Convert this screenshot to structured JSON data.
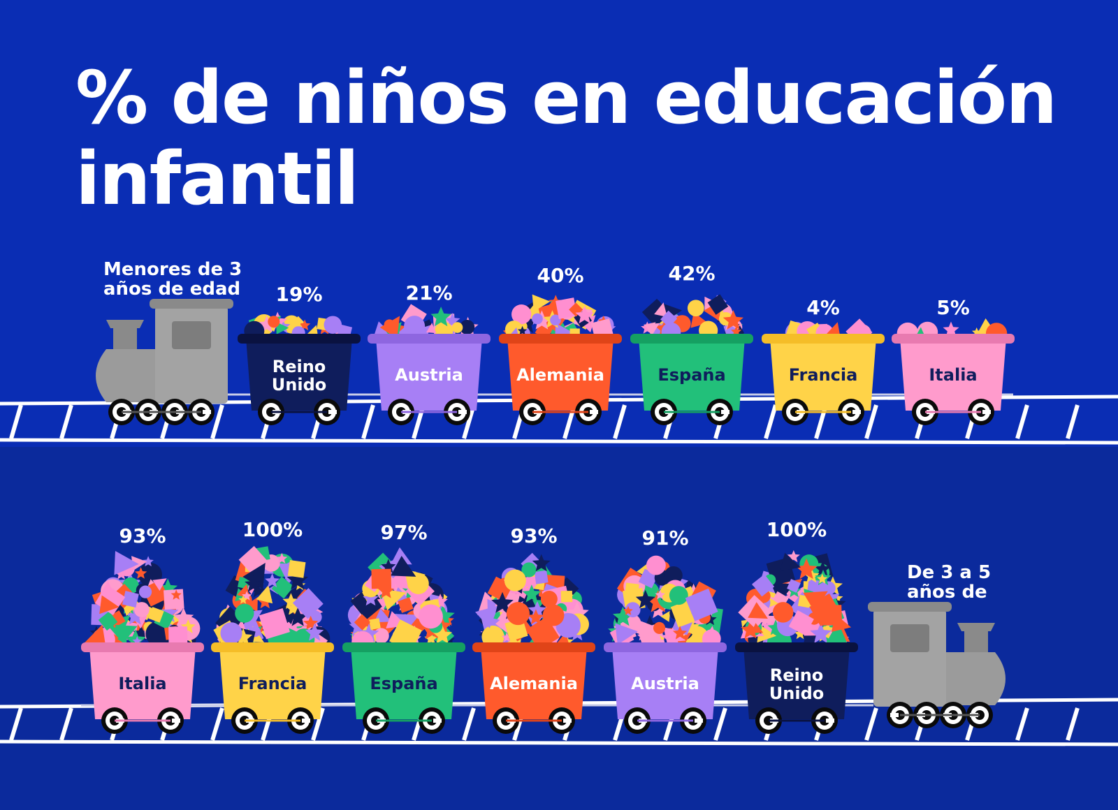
{
  "title": "% de niños en educación infantil",
  "chart_data": {
    "type": "bar",
    "title": "% de niños en educación infantil",
    "panels": [
      {
        "group_label": "Menores de 3 años de edad",
        "categories": [
          "Reino Unido",
          "Austria",
          "Alemania",
          "España",
          "Francia",
          "Italia"
        ],
        "values": [
          19,
          21,
          40,
          42,
          4,
          5
        ],
        "labels": [
          "19%",
          "21%",
          "40%",
          "42%",
          "4%",
          "5%"
        ]
      },
      {
        "group_label": "De 3 a 5 años de",
        "categories": [
          "Italia",
          "Francia",
          "España",
          "Alemania",
          "Austria",
          "Reino Unido"
        ],
        "values": [
          93,
          100,
          97,
          93,
          91,
          100
        ],
        "labels": [
          "93%",
          "100%",
          "97%",
          "93%",
          "91%",
          "100%"
        ]
      }
    ],
    "ylim": [
      0,
      100
    ]
  },
  "colors": {
    "background_top": "#0a2db4",
    "background_bottom": "#0b2a9c",
    "rail": "#ffffff",
    "locomotive": "#a3a3a3",
    "locomotive_dark": "#8a8a8a",
    "country": {
      "Reino Unido": "#0f1d5c",
      "Austria": "#a77ff5",
      "Alemania": "#ff5a2c",
      "España": "#22c07a",
      "Francia": "#ffd348",
      "Italia": "#ff9bcc"
    },
    "rim": {
      "Reino Unido": "#0a1240",
      "Austria": "#8e66e0",
      "Alemania": "#e04418",
      "España": "#15a062",
      "Francia": "#f5bd28",
      "Italia": "#e87ab0"
    },
    "text_on_cart": {
      "Reino Unido": "#ffffff",
      "Austria": "#ffffff",
      "Alemania": "#ffffff",
      "España": "#0f1d5c",
      "Francia": "#0f1d5c",
      "Italia": "#0f1d5c"
    },
    "shape_palette": [
      "#ff5a2c",
      "#ffd348",
      "#22c07a",
      "#a77ff5",
      "#ff9bcc",
      "#0f1d5c",
      "#ff8fd0"
    ]
  }
}
